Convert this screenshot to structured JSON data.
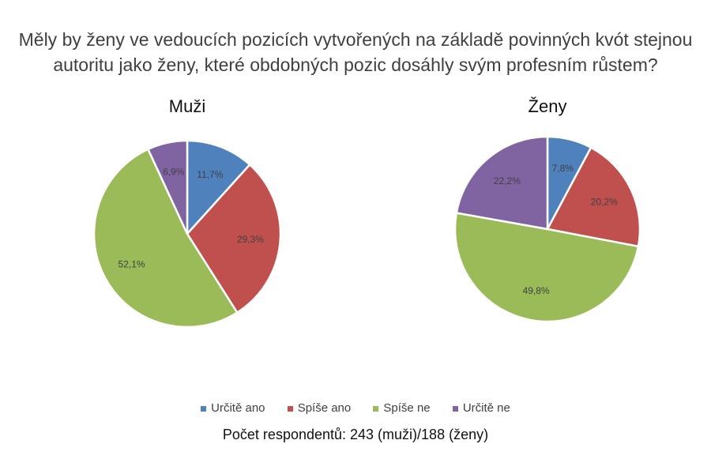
{
  "chart_data": [
    {
      "type": "pie",
      "title": "Muži",
      "categories": [
        "Určitě ano",
        "Spíše ano",
        "Spíše ne",
        "Určitě ne"
      ],
      "values": [
        11.7,
        29.3,
        52.1,
        6.9
      ],
      "labels": [
        "11,7%",
        "29,3%",
        "52,1%",
        "6,9%"
      ]
    },
    {
      "type": "pie",
      "title": "Ženy",
      "categories": [
        "Určitě ano",
        "Spíše ano",
        "Spíše ne",
        "Určitě ne"
      ],
      "values": [
        7.8,
        20.2,
        49.8,
        22.2
      ],
      "labels": [
        "7,8%",
        "20,2%",
        "49,8%",
        "22,2%"
      ]
    }
  ],
  "title": "Měly by ženy ve vedoucích pozicích vytvořených na základě povinných kvót stejnou autoritu jako ženy, které obdobných pozic dosáhly svým profesním růstem?",
  "legend": {
    "placement": "bottom",
    "items": [
      "Určitě ano",
      "Spíše ano",
      "Spíše ne",
      "Určitě ne"
    ]
  },
  "colors": [
    "#4F81BD",
    "#C0504D",
    "#9BBB59",
    "#8064A2"
  ],
  "note": "Počet respondentů: 243 (muži)/188 (ženy)"
}
